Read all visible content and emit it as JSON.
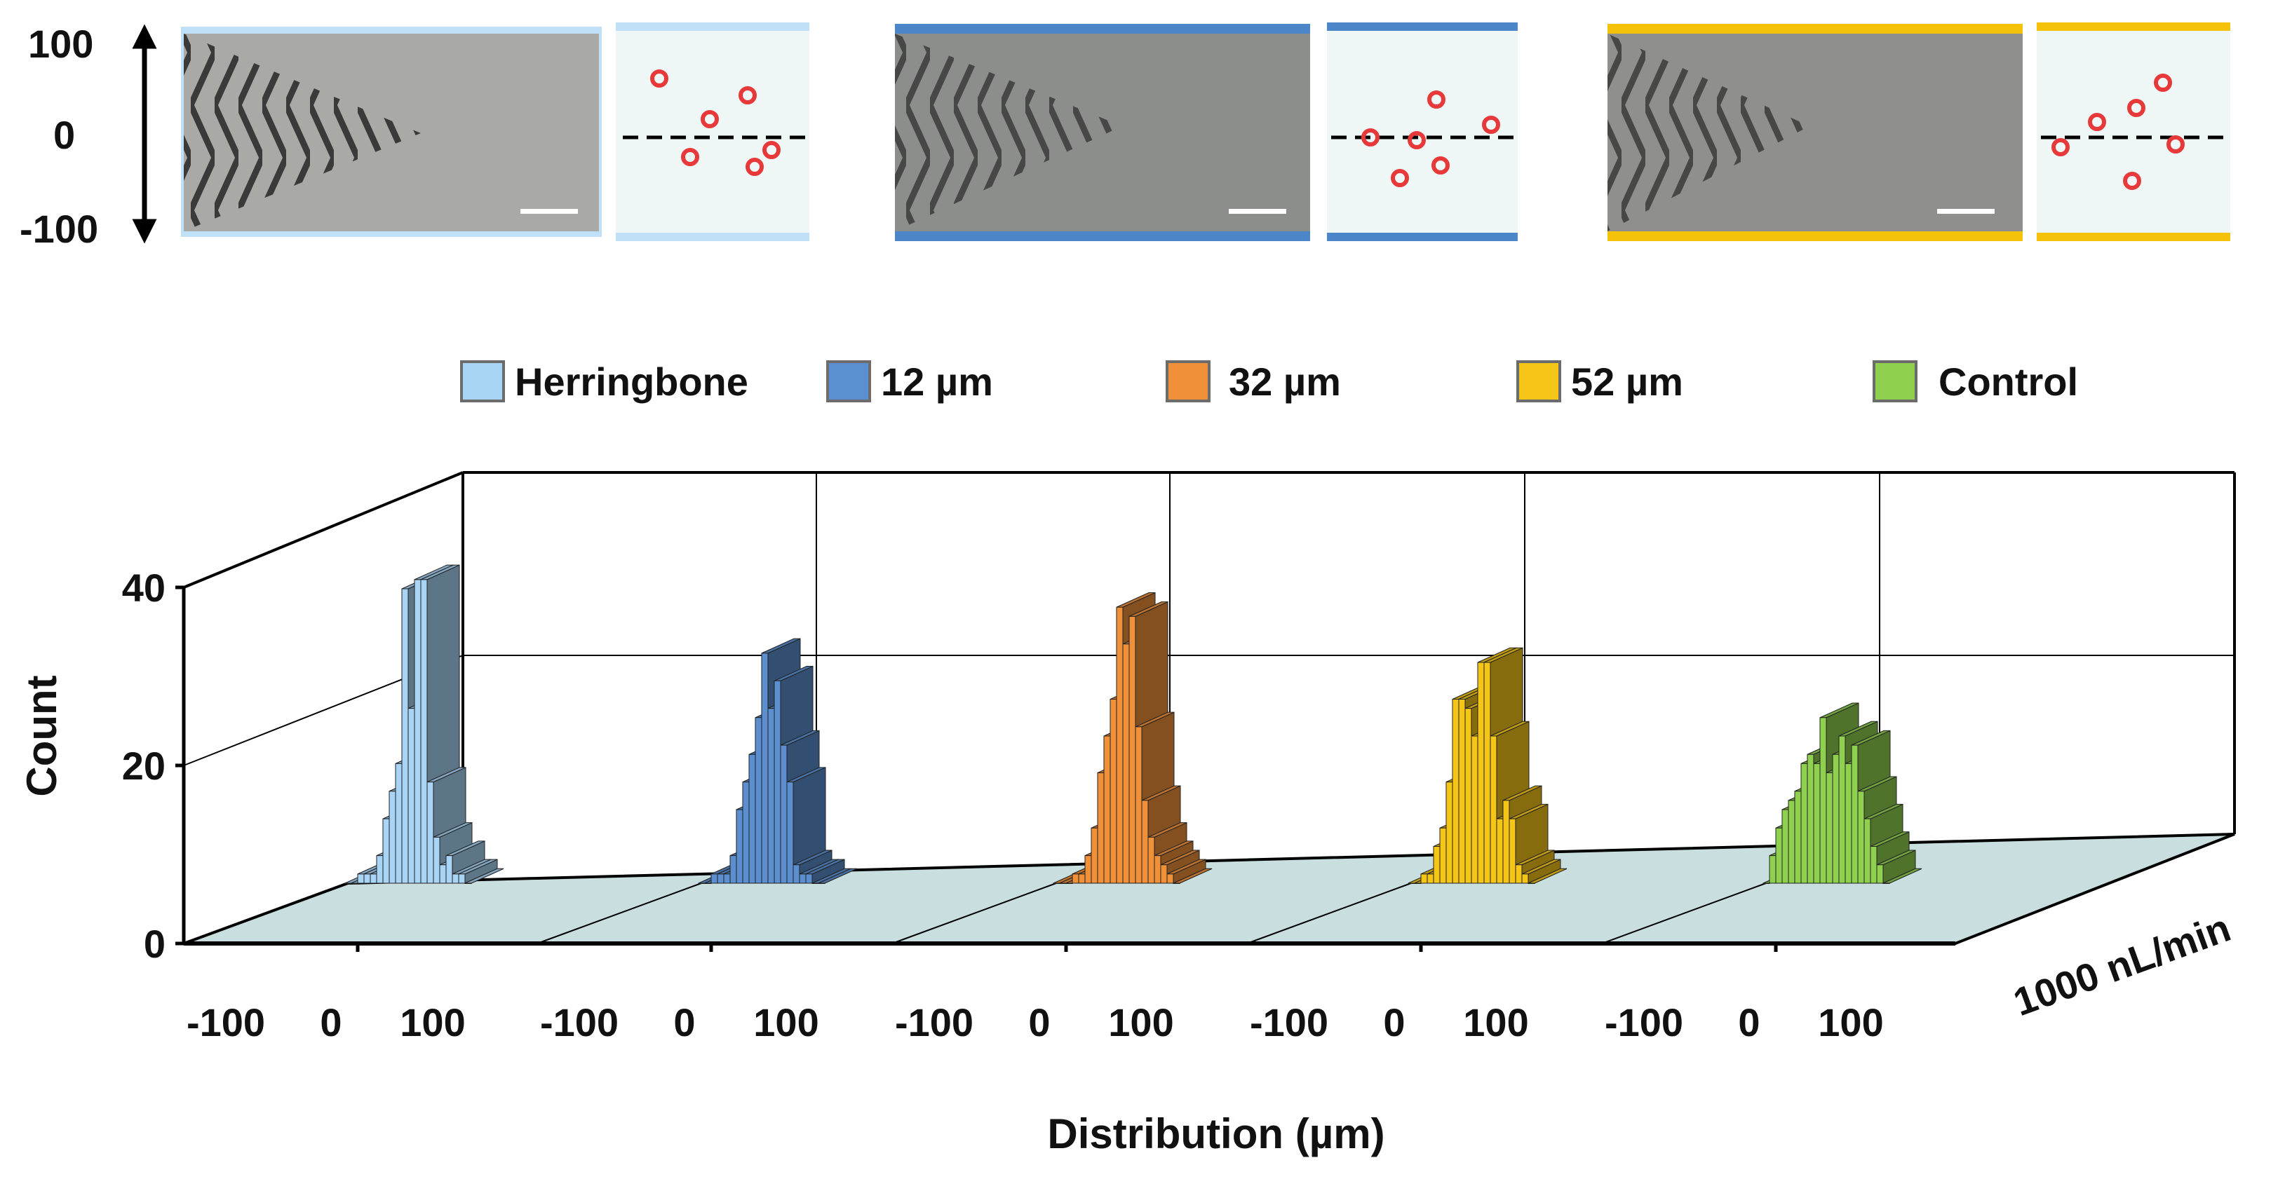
{
  "top_panels": {
    "y_axis": {
      "top": "100",
      "mid": "0",
      "bottom": "-100"
    },
    "panels": [
      {
        "name": "Herringbone",
        "color": "#bfe0f7"
      },
      {
        "name": "12 µm",
        "color": "#4a86c8"
      },
      {
        "name": "52 µm",
        "color": "#f5c20a"
      }
    ]
  },
  "legend": [
    {
      "label": "Herringbone",
      "color": "#a8d4f5"
    },
    {
      "label": "12 µm",
      "color": "#5b8fd0"
    },
    {
      "label": "32 µm",
      "color": "#f0913a"
    },
    {
      "label": "52 µm",
      "color": "#f5c518"
    },
    {
      "label": "Control",
      "color": "#8fd14f"
    }
  ],
  "chart_data": {
    "type": "bar",
    "style": "3d-histogram",
    "title": "",
    "xlabel": "Distribution (µm)",
    "ylabel": "Count",
    "zlabel": "1000 nL/min",
    "ylim": [
      0,
      40
    ],
    "yticks": [
      "0",
      "20",
      "40"
    ],
    "xlim": [
      -100,
      100
    ],
    "xticks": [
      "-100",
      "0",
      "100"
    ],
    "bins": [
      -95,
      -85,
      -75,
      -65,
      -55,
      -45,
      -35,
      -25,
      -15,
      -5,
      5,
      15,
      25,
      35,
      45,
      55,
      65,
      75,
      85,
      95
    ],
    "series": [
      {
        "name": "Herringbone",
        "color": "#a8d4f5",
        "values": [
          0,
          0,
          1,
          1,
          1,
          3,
          7,
          10,
          13,
          32,
          19,
          33,
          33,
          11,
          5,
          2,
          3,
          1,
          1,
          0
        ]
      },
      {
        "name": "12 µm",
        "color": "#5b8fd0",
        "values": [
          0,
          0,
          1,
          1,
          1,
          3,
          8,
          11,
          14,
          18,
          25,
          19,
          22,
          15,
          11,
          2,
          1,
          1,
          0,
          0
        ]
      },
      {
        "name": "32 µm",
        "color": "#f0913a",
        "values": [
          0,
          0,
          0,
          1,
          1,
          3,
          6,
          12,
          16,
          20,
          30,
          26,
          29,
          17,
          9,
          5,
          3,
          2,
          1,
          0
        ]
      },
      {
        "name": "52 µm",
        "color": "#f5c518",
        "values": [
          0,
          0,
          1,
          1,
          4,
          6,
          11,
          20,
          20,
          19,
          16,
          24,
          24,
          16,
          7,
          9,
          7,
          2,
          1,
          0
        ]
      },
      {
        "name": "Control",
        "color": "#8fd14f",
        "values": [
          0,
          3,
          6,
          8,
          9,
          10,
          13,
          14,
          13,
          18,
          12,
          14,
          16,
          13,
          15,
          10,
          7,
          4,
          2,
          0
        ]
      }
    ]
  }
}
